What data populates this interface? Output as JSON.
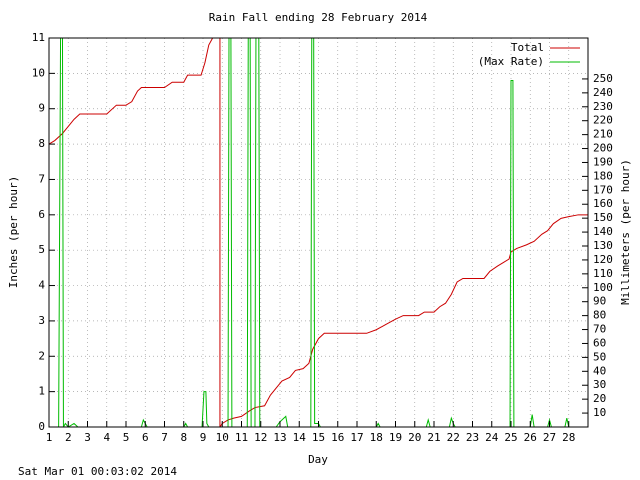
{
  "chart_data": {
    "type": "line",
    "title": "Rain Fall ending 28 February 2014",
    "x_label": "Day",
    "y_label": "Inches (per hour)",
    "y2_label": "Millimeters (per hour)",
    "footer": "Sat Mar 01 00:03:02 2014",
    "xlim": [
      1,
      29
    ],
    "xticks": [
      1,
      2,
      3,
      4,
      5,
      6,
      7,
      8,
      9,
      10,
      11,
      12,
      13,
      14,
      15,
      16,
      17,
      18,
      19,
      20,
      21,
      22,
      23,
      24,
      25,
      26,
      27,
      28
    ],
    "ylim": [
      0,
      11
    ],
    "yticks": [
      0,
      1,
      2,
      3,
      4,
      5,
      6,
      7,
      8,
      9,
      10,
      11
    ],
    "y2lim": [
      0,
      279.4
    ],
    "y2ticks": [
      10,
      20,
      30,
      40,
      50,
      60,
      70,
      80,
      90,
      100,
      110,
      120,
      130,
      140,
      150,
      160,
      170,
      180,
      190,
      200,
      210,
      220,
      230,
      240,
      250
    ],
    "grid": true,
    "legend": "top-right",
    "series": [
      {
        "name": "Total",
        "color": "#cc0000",
        "x": [
          1.0,
          1.3,
          1.7,
          2.0,
          2.3,
          2.6,
          3.0,
          4.0,
          4.5,
          5.0,
          5.3,
          5.6,
          5.8,
          6.0,
          7.0,
          7.4,
          8.0,
          8.2,
          8.9,
          9.1,
          9.3,
          9.5,
          9.88,
          9.88,
          10.0,
          10.3,
          10.6,
          11.0,
          11.4,
          11.7,
          12.2,
          12.5,
          12.8,
          13.1,
          13.5,
          13.8,
          14.2,
          14.5,
          14.7,
          15.0,
          15.3,
          15.6,
          17.5,
          18.0,
          18.5,
          19.0,
          19.4,
          20.2,
          20.5,
          21.0,
          21.3,
          21.6,
          21.9,
          22.2,
          22.5,
          23.6,
          23.9,
          24.3,
          24.6,
          24.9,
          25.0,
          25.3,
          25.8,
          26.2,
          26.6,
          26.9,
          27.2,
          27.6,
          28.0,
          28.5,
          29.0
        ],
        "values": [
          8.0,
          8.1,
          8.3,
          8.5,
          8.7,
          8.85,
          8.85,
          8.85,
          9.1,
          9.1,
          9.2,
          9.5,
          9.6,
          9.6,
          9.6,
          9.75,
          9.75,
          9.95,
          9.95,
          10.3,
          10.8,
          11,
          11,
          0,
          0.1,
          0.2,
          0.25,
          0.3,
          0.45,
          0.55,
          0.6,
          0.9,
          1.1,
          1.3,
          1.4,
          1.6,
          1.65,
          1.8,
          2.2,
          2.5,
          2.65,
          2.65,
          2.65,
          2.75,
          2.9,
          3.05,
          3.15,
          3.15,
          3.25,
          3.25,
          3.4,
          3.5,
          3.75,
          4.1,
          4.2,
          4.2,
          4.4,
          4.55,
          4.65,
          4.75,
          4.95,
          5.05,
          5.15,
          5.25,
          5.45,
          5.55,
          5.75,
          5.9,
          5.95,
          6.0,
          6.0
        ]
      },
      {
        "name": "(Max Rate)",
        "color": "#00bb00",
        "x": [
          1.0,
          1.5,
          1.55,
          1.6,
          1.7,
          1.75,
          1.85,
          2.0,
          2.3,
          2.5,
          5.8,
          5.9,
          6.0,
          6.1,
          8.0,
          8.1,
          8.2,
          8.95,
          9.05,
          9.15,
          9.2,
          9.3,
          10.3,
          10.35,
          10.45,
          10.5,
          11.3,
          11.35,
          11.45,
          11.5,
          11.7,
          11.75,
          11.9,
          11.95,
          12.8,
          13.0,
          13.3,
          13.4,
          14.6,
          14.65,
          14.75,
          14.8,
          15.0,
          15.1,
          18.0,
          18.1,
          18.2,
          20.6,
          20.7,
          20.8,
          21.8,
          21.9,
          22.0,
          22.1,
          24.95,
          25.0,
          25.1,
          25.15,
          26.0,
          26.1,
          26.2,
          26.9,
          27.0,
          27.1,
          27.8,
          27.9,
          28.0,
          29.0
        ],
        "values": [
          0,
          0,
          5.5,
          11,
          11,
          0,
          0.1,
          0,
          0.1,
          0,
          0,
          0.2,
          0.1,
          0,
          0,
          0.1,
          0,
          0,
          1.0,
          1.0,
          0.1,
          0,
          0,
          11,
          11,
          0,
          0,
          11,
          11,
          0,
          0,
          11,
          11,
          0,
          0,
          0.15,
          0.3,
          0,
          0,
          11,
          11,
          0.1,
          0.1,
          0,
          0,
          0.1,
          0,
          0,
          0.2,
          0,
          0,
          0.25,
          0.1,
          0,
          0,
          9.8,
          9.8,
          0,
          0,
          0.35,
          0,
          0,
          0.2,
          0,
          0,
          0.25,
          0,
          0
        ]
      }
    ]
  }
}
